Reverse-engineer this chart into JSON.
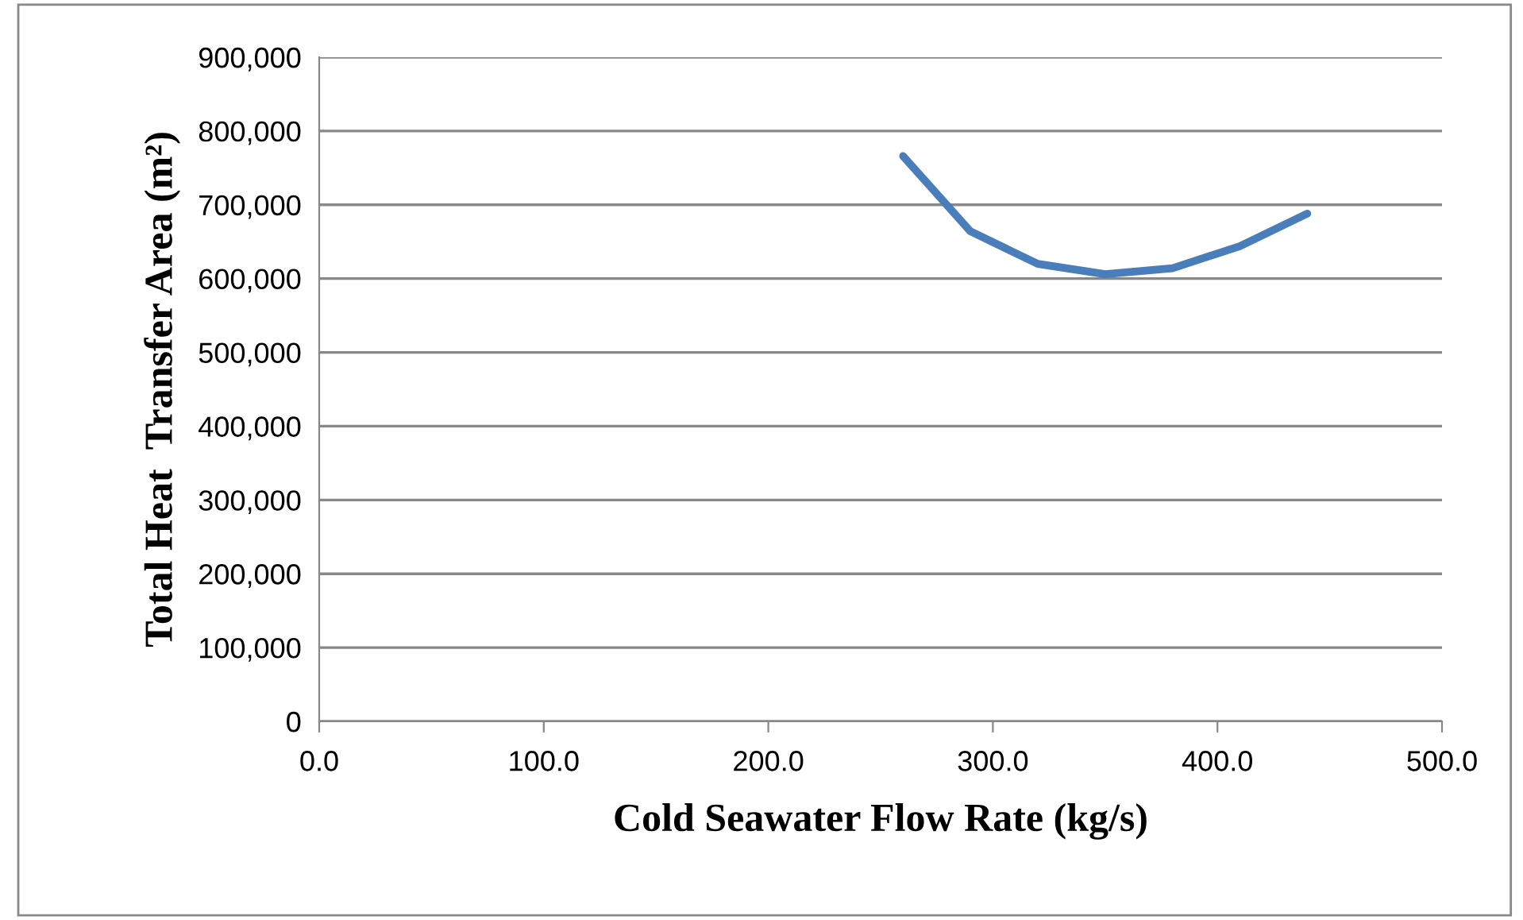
{
  "chart_data": {
    "type": "line",
    "xlabel": "Cold Seawater Flow Rate (kg/s)",
    "ylabel": "Total Heat  Transfer Area (m²)",
    "x": [
      260,
      290,
      320,
      350,
      380,
      410,
      440
    ],
    "series": [
      {
        "color": "#4a7ebb",
        "values": [
          766000,
          664000,
          620000,
          606000,
          614000,
          644000,
          688000
        ]
      }
    ],
    "xlim": [
      0,
      500
    ],
    "xticks": [
      {
        "value": 0,
        "label": "0.0"
      },
      {
        "value": 100,
        "label": "100.0"
      },
      {
        "value": 200,
        "label": "200.0"
      },
      {
        "value": 300,
        "label": "300.0"
      },
      {
        "value": 400,
        "label": "400.0"
      },
      {
        "value": 500,
        "label": "500.0"
      }
    ],
    "ylim": [
      0,
      900000
    ],
    "yticks": [
      {
        "value": 0,
        "label": "0"
      },
      {
        "value": 100000,
        "label": "100,000"
      },
      {
        "value": 200000,
        "label": "200,000"
      },
      {
        "value": 300000,
        "label": "300,000"
      },
      {
        "value": 400000,
        "label": "400,000"
      },
      {
        "value": 500000,
        "label": "500,000"
      },
      {
        "value": 600000,
        "label": "600,000"
      },
      {
        "value": 700000,
        "label": "700,000"
      },
      {
        "value": 800000,
        "label": "800,000"
      },
      {
        "value": 900000,
        "label": "900,000"
      }
    ],
    "grid": "y",
    "marker": "none",
    "line_style": "solid"
  }
}
